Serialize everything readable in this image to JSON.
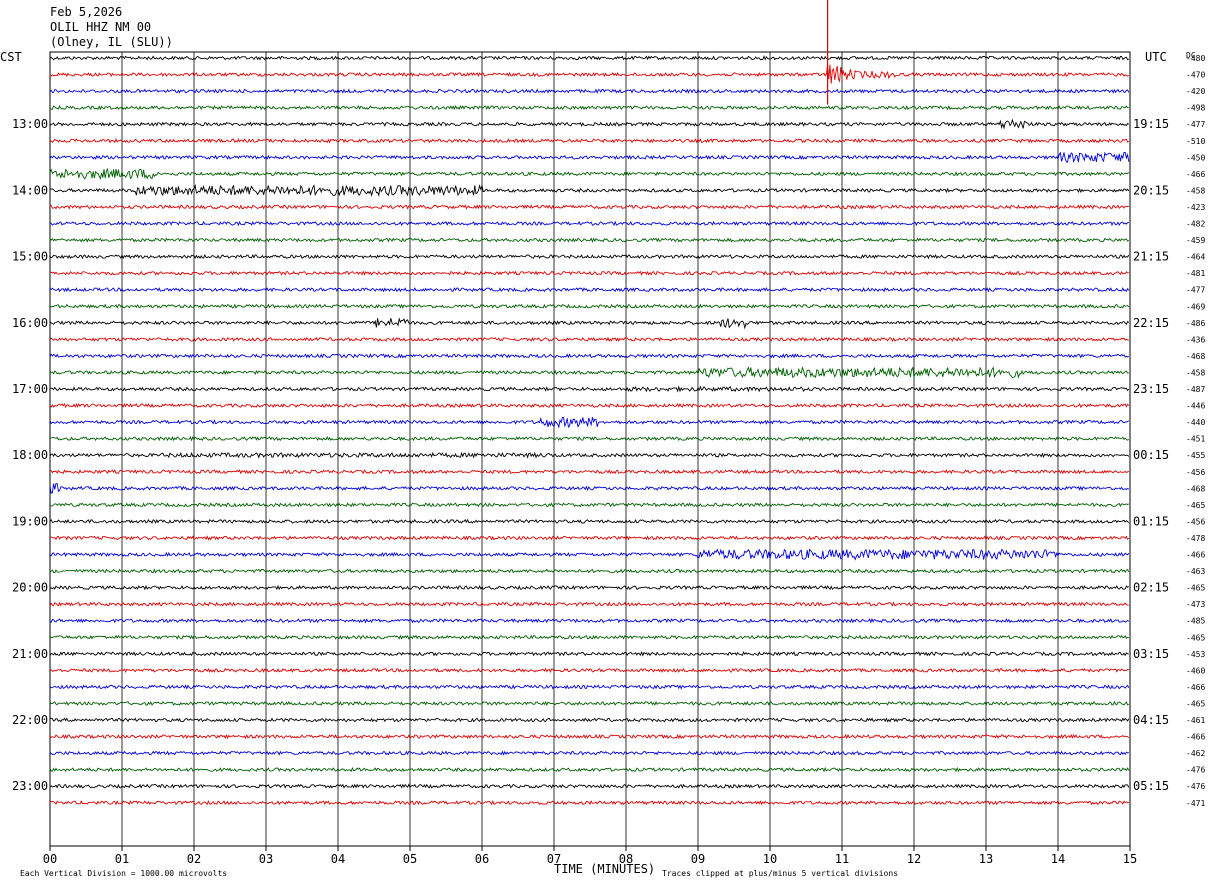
{
  "header": {
    "date": "Feb 5,2026",
    "station": "OLIL HHZ NM 00",
    "location": "(Olney, IL (SLU))"
  },
  "chart_data": {
    "type": "line",
    "title": "Feb 5,2026",
    "left_timezone": "CST",
    "right_timezone": "UTC",
    "dc_label": "DC",
    "xlabel": "TIME (MINUTES)",
    "xlim": [
      0,
      15
    ],
    "x_ticks": [
      "00",
      "01",
      "02",
      "03",
      "04",
      "05",
      "06",
      "07",
      "08",
      "09",
      "10",
      "11",
      "12",
      "13",
      "14",
      "15"
    ],
    "rows_per_hour": 4,
    "minutes_per_row": 15,
    "left_hour_labels": [
      "13:00",
      "14:00",
      "15:00",
      "16:00",
      "17:00",
      "18:00",
      "19:00",
      "20:00",
      "21:00",
      "22:00",
      "23:00"
    ],
    "right_hour_labels": [
      "19:15",
      "20:15",
      "21:15",
      "22:15",
      "23:15",
      "00:15",
      "01:15",
      "02:15",
      "03:15",
      "04:15",
      "05:15"
    ],
    "dc_offsets": [
      -480,
      -470,
      -420,
      -498,
      -477,
      -510,
      -450,
      -466,
      -458,
      -423,
      -482,
      -459,
      -464,
      -481,
      -477,
      -469,
      -486,
      -436,
      -468,
      -458,
      -487,
      -446,
      -440,
      -451,
      -455,
      -456,
      -468,
      -465,
      -456,
      -478,
      -466,
      -463,
      -465,
      -473,
      -485,
      -465,
      -453,
      -460,
      -466,
      -465,
      -461,
      -466,
      -462,
      -476,
      -476,
      -471
    ],
    "trace_colors": [
      "#000000",
      "#e00000",
      "#0000e0",
      "#006000"
    ],
    "events": [
      {
        "row": 1,
        "start_min": 10.8,
        "end_min": 11.8,
        "amplitude": "large"
      },
      {
        "row": 4,
        "start_min": 13.2,
        "end_min": 13.6,
        "amplitude": "medium"
      },
      {
        "row": 6,
        "start_min": 14.0,
        "end_min": 15.0,
        "amplitude": "medium"
      },
      {
        "row": 7,
        "start_min": 0.0,
        "end_min": 1.5,
        "amplitude": "medium"
      },
      {
        "row": 8,
        "start_min": 1.2,
        "end_min": 6.0,
        "amplitude": "medium"
      },
      {
        "row": 16,
        "start_min": 4.5,
        "end_min": 5.0,
        "amplitude": "medium"
      },
      {
        "row": 16,
        "start_min": 9.3,
        "end_min": 9.7,
        "amplitude": "medium"
      },
      {
        "row": 19,
        "start_min": 9.0,
        "end_min": 13.5,
        "amplitude": "medium"
      },
      {
        "row": 20,
        "start_min": 8.0,
        "end_min": 10.5,
        "amplitude": "small"
      },
      {
        "row": 22,
        "start_min": 6.8,
        "end_min": 7.6,
        "amplitude": "medium"
      },
      {
        "row": 24,
        "start_min": 1.5,
        "end_min": 7.0,
        "amplitude": "small"
      },
      {
        "row": 26,
        "start_min": 0.0,
        "end_min": 0.15,
        "amplitude": "medium"
      },
      {
        "row": 30,
        "start_min": 9.0,
        "end_min": 14.0,
        "amplitude": "medium"
      }
    ],
    "grid": true
  },
  "footer": {
    "scale_note": "Each Vertical Division = 1000.00 microvolts",
    "clip_note": "Traces clipped at plus/minus 5 vertical divisions"
  }
}
